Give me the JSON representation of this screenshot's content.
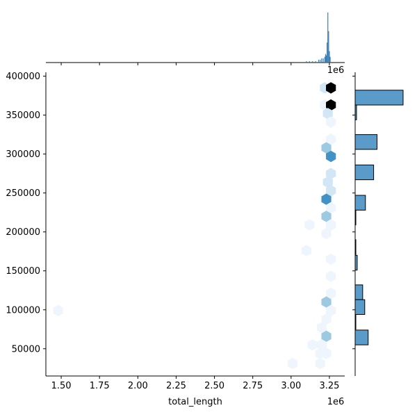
{
  "chart_data": {
    "type": "hexbin-jointplot",
    "xlabel": "total_length",
    "ylabel": "",
    "x_offset_label": "1e6",
    "marginal_x_offset_label": "1e6",
    "xlim": [
      1.4,
      3.35
    ],
    "ylim": [
      15000,
      405000
    ],
    "x_ticks": [
      1.5,
      1.75,
      2.0,
      2.25,
      2.5,
      2.75,
      3.0,
      3.25
    ],
    "x_tick_labels": [
      "1.50",
      "1.75",
      "2.00",
      "2.25",
      "2.50",
      "2.75",
      "3.00",
      "3.25"
    ],
    "y_ticks": [
      50000,
      100000,
      150000,
      200000,
      250000,
      300000,
      350000,
      400000
    ],
    "y_tick_labels": [
      "50000",
      "100000",
      "150000",
      "200000",
      "250000",
      "300000",
      "350000",
      "400000"
    ],
    "colors": {
      "hex_scale": [
        "#eef5fc",
        "#d2e6f6",
        "#9ecae1",
        "#4292c6",
        "#2878b8",
        "#000000"
      ],
      "bar_fill": "#5b9bc9",
      "bar_edge": "#000000"
    },
    "hexbins": [
      {
        "x": 3.22,
        "y": 385000,
        "count": 2
      },
      {
        "x": 3.26,
        "y": 385000,
        "count": 6
      },
      {
        "x": 3.22,
        "y": 363000,
        "count": 1
      },
      {
        "x": 3.26,
        "y": 363000,
        "count": 6
      },
      {
        "x": 3.24,
        "y": 352000,
        "count": 2
      },
      {
        "x": 3.26,
        "y": 341000,
        "count": 1
      },
      {
        "x": 3.26,
        "y": 319000,
        "count": 1
      },
      {
        "x": 3.23,
        "y": 308000,
        "count": 3
      },
      {
        "x": 3.26,
        "y": 297000,
        "count": 4
      },
      {
        "x": 3.26,
        "y": 275000,
        "count": 2
      },
      {
        "x": 3.24,
        "y": 264000,
        "count": 2
      },
      {
        "x": 3.26,
        "y": 253000,
        "count": 2
      },
      {
        "x": 3.23,
        "y": 242000,
        "count": 4
      },
      {
        "x": 3.26,
        "y": 231000,
        "count": 1
      },
      {
        "x": 3.23,
        "y": 220000,
        "count": 3
      },
      {
        "x": 3.12,
        "y": 209000,
        "count": 1
      },
      {
        "x": 3.26,
        "y": 209000,
        "count": 1
      },
      {
        "x": 3.23,
        "y": 198000,
        "count": 1
      },
      {
        "x": 3.1,
        "y": 176000,
        "count": 1
      },
      {
        "x": 3.26,
        "y": 165000,
        "count": 1
      },
      {
        "x": 3.26,
        "y": 143000,
        "count": 1
      },
      {
        "x": 3.26,
        "y": 121000,
        "count": 1
      },
      {
        "x": 3.23,
        "y": 110000,
        "count": 3
      },
      {
        "x": 1.48,
        "y": 99000,
        "count": 1
      },
      {
        "x": 3.26,
        "y": 99000,
        "count": 1
      },
      {
        "x": 3.23,
        "y": 88000,
        "count": 1
      },
      {
        "x": 3.2,
        "y": 77000,
        "count": 1
      },
      {
        "x": 3.23,
        "y": 66000,
        "count": 3
      },
      {
        "x": 3.2,
        "y": 55000,
        "count": 1
      },
      {
        "x": 3.14,
        "y": 55000,
        "count": 1
      },
      {
        "x": 3.19,
        "y": 44000,
        "count": 1
      },
      {
        "x": 3.23,
        "y": 44000,
        "count": 1
      },
      {
        "x": 3.01,
        "y": 31000,
        "count": 1
      },
      {
        "x": 3.19,
        "y": 31000,
        "count": 1
      }
    ],
    "marginal_y_bins": [
      {
        "y0": 363000,
        "y1": 382000,
        "count": 70
      },
      {
        "y0": 344000,
        "count": 2,
        "y1": 363000
      },
      {
        "y0": 306000,
        "y1": 325000,
        "count": 32
      },
      {
        "y0": 267000,
        "y1": 286000,
        "count": 27
      },
      {
        "y0": 228000,
        "y1": 247000,
        "count": 15
      },
      {
        "y0": 209000,
        "y1": 228000,
        "count": 1
      },
      {
        "y0": 171000,
        "y1": 190000,
        "count": 1
      },
      {
        "y0": 151000,
        "y1": 170000,
        "count": 3
      },
      {
        "y0": 113000,
        "y1": 132000,
        "count": 11
      },
      {
        "y0": 94000,
        "y1": 113000,
        "count": 14
      },
      {
        "y0": 75000,
        "y1": 94000,
        "count": 1
      },
      {
        "y0": 55000,
        "y1": 74000,
        "count": 19
      }
    ],
    "marginal_y_note": "bins read from the right marginal histogram",
    "marginal_x_bins": [
      {
        "x": 3.1,
        "count": 1
      },
      {
        "x": 3.12,
        "count": 1
      },
      {
        "x": 3.14,
        "count": 1
      },
      {
        "x": 3.16,
        "count": 1
      },
      {
        "x": 3.18,
        "count": 2
      },
      {
        "x": 3.19,
        "count": 2
      },
      {
        "x": 3.2,
        "count": 3
      },
      {
        "x": 3.21,
        "count": 3
      },
      {
        "x": 3.22,
        "count": 4
      },
      {
        "x": 3.225,
        "count": 6
      },
      {
        "x": 3.23,
        "count": 5
      },
      {
        "x": 3.235,
        "count": 14
      },
      {
        "x": 3.24,
        "count": 35
      },
      {
        "x": 3.245,
        "count": 22
      },
      {
        "x": 3.25,
        "count": 8
      },
      {
        "x": 3.255,
        "count": 4
      },
      {
        "x": 1.49,
        "count": 0
      }
    ]
  }
}
